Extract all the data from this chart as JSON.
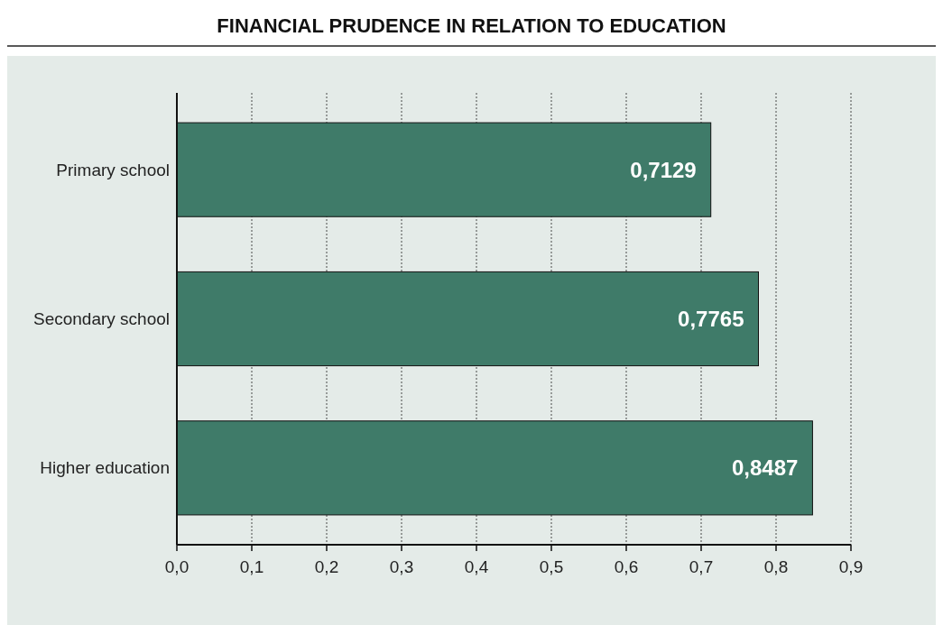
{
  "chart_data": {
    "type": "bar",
    "orientation": "horizontal",
    "title": "FINANCIAL PRUDENCE IN RELATION TO EDUCATION",
    "categories": [
      "Primary school",
      "Secondary school",
      "Higher education"
    ],
    "values": [
      0.7129,
      0.7765,
      0.8487
    ],
    "value_labels": [
      "0,7129",
      "0,7765",
      "0,8487"
    ],
    "color": "#3f7b69",
    "xlim": [
      0,
      0.9
    ],
    "xticks": [
      {
        "value": 0,
        "label": "0,0"
      },
      {
        "value": 0.1,
        "label": "0,1"
      },
      {
        "value": 0.2,
        "label": "0,2"
      },
      {
        "value": 0.3,
        "label": "0,3"
      },
      {
        "value": 0.4,
        "label": "0,4"
      },
      {
        "value": 0.5,
        "label": "0,5"
      },
      {
        "value": 0.6,
        "label": "0,6"
      },
      {
        "value": 0.7,
        "label": "0,7"
      },
      {
        "value": 0.8,
        "label": "0,8"
      },
      {
        "value": 0.9,
        "label": "0,9"
      }
    ],
    "grid": "x"
  }
}
